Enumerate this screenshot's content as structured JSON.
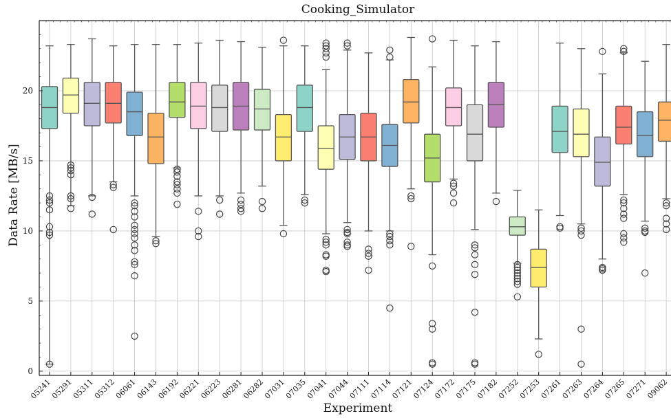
{
  "chart_data": {
    "type": "box",
    "title": "Cooking_Simulator",
    "xlabel": "Experiment",
    "ylabel": "Data Rate [MB/s]",
    "ylim": [
      -0.3,
      25
    ],
    "yticks": [
      0,
      5,
      10,
      15,
      20
    ],
    "grid": true,
    "categories": [
      "05241",
      "05291",
      "05311",
      "05312",
      "06061",
      "06143",
      "06192",
      "06221",
      "06223",
      "06281",
      "06282",
      "07031",
      "07035",
      "07041",
      "07044",
      "07111",
      "07114",
      "07121",
      "07124",
      "07172",
      "07175",
      "07182",
      "07252",
      "07253",
      "07261",
      "07263",
      "07264",
      "07265",
      "07271",
      "09062"
    ],
    "colors": [
      "#8dd3c7",
      "#ffffb3",
      "#bebada",
      "#fb8072",
      "#80b1d3",
      "#fdb462",
      "#b3de69",
      "#fccde5",
      "#d9d9d9",
      "#bc80bd",
      "#ccebc5",
      "#ffed6f",
      "#8dd3c7",
      "#ffffb3",
      "#bebada",
      "#fb8072",
      "#80b1d3",
      "#fdb462",
      "#b3de69",
      "#fccde5",
      "#d9d9d9",
      "#bc80bd",
      "#ccebc5",
      "#ffed6f",
      "#8dd3c7",
      "#ffffb3",
      "#bebada",
      "#fb8072",
      "#80b1d3",
      "#fdb462"
    ],
    "boxes": [
      {
        "whislo": 0.5,
        "q1": 17.3,
        "med": 18.8,
        "q3": 20.3,
        "whishi": 23.2,
        "fliers": [
          12.5,
          12.2,
          12.0,
          11.5,
          10.3,
          9.9,
          9.7,
          0.5
        ]
      },
      {
        "whislo": 11.8,
        "q1": 18.4,
        "med": 19.7,
        "q3": 20.9,
        "whishi": 23.3,
        "fliers": [
          14.7,
          14.5,
          14.3,
          14.0,
          12.5,
          12.3,
          11.6
        ]
      },
      {
        "whislo": 12.5,
        "q1": 17.5,
        "med": 19.1,
        "q3": 20.6,
        "whishi": 23.7,
        "fliers": [
          12.4,
          11.2
        ]
      },
      {
        "whislo": 13.5,
        "q1": 17.7,
        "med": 19.1,
        "q3": 20.6,
        "whishi": 23.2,
        "fliers": [
          13.3,
          13.1,
          10.1
        ]
      },
      {
        "whislo": 12.5,
        "q1": 16.8,
        "med": 18.5,
        "q3": 19.9,
        "whishi": 23.3,
        "fliers": [
          12.0,
          11.8,
          11.4,
          11.0,
          10.4,
          10.1,
          9.8,
          9.5,
          9.0,
          8.6,
          7.8,
          7.6,
          6.8,
          2.5
        ]
      },
      {
        "whislo": 9.6,
        "q1": 14.8,
        "med": 16.7,
        "q3": 18.4,
        "whishi": 23.3,
        "fliers": [
          9.3,
          9.1
        ]
      },
      {
        "whislo": 14.5,
        "q1": 18.1,
        "med": 19.2,
        "q3": 20.6,
        "whishi": 23.3,
        "fliers": [
          14.4,
          14.2,
          13.9,
          13.5,
          13.3,
          13.0,
          12.7,
          11.9
        ]
      },
      {
        "whislo": 12.5,
        "q1": 17.3,
        "med": 18.9,
        "q3": 20.6,
        "whishi": 23.4,
        "fliers": [
          11.4,
          10.0,
          9.6
        ]
      },
      {
        "whislo": 12.5,
        "q1": 17.1,
        "med": 18.8,
        "q3": 20.4,
        "whishi": 23.6,
        "fliers": [
          12.2,
          11.2
        ]
      },
      {
        "whislo": 12.7,
        "q1": 17.2,
        "med": 18.9,
        "q3": 20.6,
        "whishi": 23.5,
        "fliers": [
          12.2,
          11.9,
          11.6,
          11.4
        ]
      },
      {
        "whislo": 13.2,
        "q1": 17.2,
        "med": 18.7,
        "q3": 20.1,
        "whishi": 23.1,
        "fliers": [
          12.1,
          11.6
        ]
      },
      {
        "whislo": 10.4,
        "q1": 15.0,
        "med": 16.7,
        "q3": 18.3,
        "whishi": 23.2,
        "fliers": [
          23.6,
          9.8
        ]
      },
      {
        "whislo": 12.6,
        "q1": 17.1,
        "med": 18.8,
        "q3": 20.4,
        "whishi": 23.2,
        "fliers": [
          12.2,
          12.0
        ]
      },
      {
        "whislo": 9.8,
        "q1": 14.4,
        "med": 15.9,
        "q3": 17.5,
        "whishi": 21.5,
        "fliers": [
          23.4,
          23.2,
          23.0,
          22.7,
          22.4,
          9.4,
          9.2,
          9.0,
          8.3,
          8.2,
          7.2,
          7.1
        ]
      },
      {
        "whislo": 10.6,
        "q1": 15.1,
        "med": 16.7,
        "q3": 18.3,
        "whishi": 22.9,
        "fliers": [
          23.4,
          23.2,
          10.1,
          9.9,
          9.8,
          9.2,
          9.0,
          8.9
        ]
      },
      {
        "whislo": 10.0,
        "q1": 15.0,
        "med": 16.7,
        "q3": 18.4,
        "whishi": 22.7,
        "fliers": [
          8.7,
          8.4,
          8.2,
          7.2
        ]
      },
      {
        "whislo": 10.0,
        "q1": 14.6,
        "med": 16.1,
        "q3": 17.6,
        "whishi": 22.2,
        "fliers": [
          22.9,
          22.4,
          9.8,
          9.6,
          9.3,
          9.0,
          4.5
        ]
      },
      {
        "whislo": 13.0,
        "q1": 17.7,
        "med": 19.2,
        "q3": 20.8,
        "whishi": 23.8,
        "fliers": [
          12.5,
          12.3,
          8.9
        ]
      },
      {
        "whislo": 8.3,
        "q1": 13.5,
        "med": 15.2,
        "q3": 16.9,
        "whishi": 21.7,
        "fliers": [
          23.7,
          7.5,
          3.4,
          3.0,
          0.6,
          0.5
        ]
      },
      {
        "whislo": 13.7,
        "q1": 17.5,
        "med": 18.8,
        "q3": 20.2,
        "whishi": 23.6,
        "fliers": [
          13.4,
          13.2,
          12.7,
          12.0
        ]
      },
      {
        "whislo": 10.1,
        "q1": 15.0,
        "med": 16.9,
        "q3": 19.0,
        "whishi": 23.2,
        "fliers": [
          9.0,
          8.8,
          8.3,
          7.6,
          6.9,
          4.2,
          0.6,
          0.5
        ]
      },
      {
        "whislo": 12.7,
        "q1": 17.4,
        "med": 19.0,
        "q3": 20.6,
        "whishi": 23.5,
        "fliers": [
          12.1
        ]
      },
      {
        "whislo": 7.7,
        "q1": 9.7,
        "med": 10.3,
        "q3": 11.0,
        "whishi": 12.9,
        "fliers": [
          7.6,
          7.4,
          7.2,
          7.0,
          6.8,
          6.6,
          6.4,
          6.2,
          5.3
        ]
      },
      {
        "whislo": 2.3,
        "q1": 6.0,
        "med": 7.4,
        "q3": 8.7,
        "whishi": 11.5,
        "fliers": [
          1.2
        ]
      },
      {
        "whislo": 11.1,
        "q1": 15.6,
        "med": 17.1,
        "q3": 18.9,
        "whishi": 23.4,
        "fliers": [
          10.3,
          10.2
        ]
      },
      {
        "whislo": 10.5,
        "q1": 15.3,
        "med": 16.9,
        "q3": 18.7,
        "whishi": 23.0,
        "fliers": [
          10.2,
          10.0,
          9.7,
          3.0,
          0.5
        ]
      },
      {
        "whislo": 8.0,
        "q1": 13.2,
        "med": 14.9,
        "q3": 16.7,
        "whishi": 21.2,
        "fliers": [
          22.8,
          7.4,
          7.3,
          7.2
        ]
      },
      {
        "whislo": 12.6,
        "q1": 16.2,
        "med": 17.4,
        "q3": 18.9,
        "whishi": 22.7,
        "fliers": [
          23.0,
          22.8,
          12.2,
          12.0,
          11.6,
          11.2,
          10.9,
          9.8,
          9.5,
          9.2
        ]
      },
      {
        "whislo": 10.7,
        "q1": 15.3,
        "med": 16.8,
        "q3": 18.5,
        "whishi": 22.1,
        "fliers": [
          10.2,
          10.0,
          9.9,
          7.0
        ]
      },
      {
        "whislo": 12.3,
        "q1": 16.4,
        "med": 17.9,
        "q3": 19.2,
        "whishi": 23.3,
        "fliers": [
          12.0,
          11.8,
          10.9,
          10.5,
          10.1
        ]
      }
    ]
  }
}
